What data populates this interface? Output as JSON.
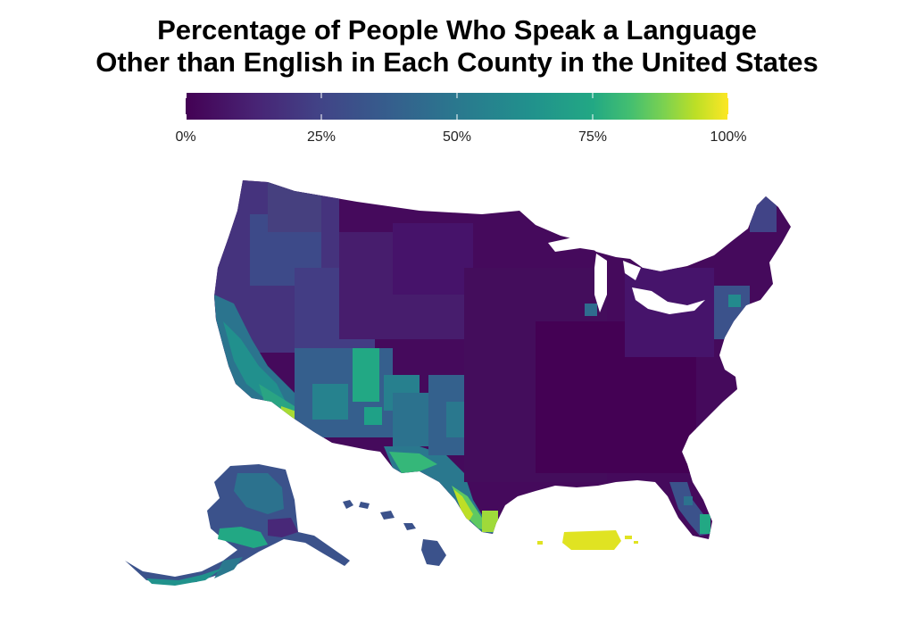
{
  "title": {
    "line1": "Percentage of People Who Speak a Language",
    "line2": "Other than English in Each County in the United States"
  },
  "legend": {
    "ticks": [
      "0%",
      "25%",
      "50%",
      "75%",
      "100%"
    ],
    "tick_values": [
      0,
      25,
      50,
      75,
      100
    ],
    "min": 0,
    "max": 100,
    "colors": [
      "#440154",
      "#3b528b",
      "#21908d",
      "#5dc963",
      "#fde725"
    ]
  },
  "map": {
    "colors": {
      "low": "#440154",
      "low_mid": "#472d7b",
      "mid_low": "#3b528b",
      "mid": "#2c728e",
      "teal": "#21908d",
      "green": "#3bbb75",
      "light_green": "#5dc963",
      "yellow_green": "#aadc32",
      "yellow": "#fde725"
    }
  }
}
